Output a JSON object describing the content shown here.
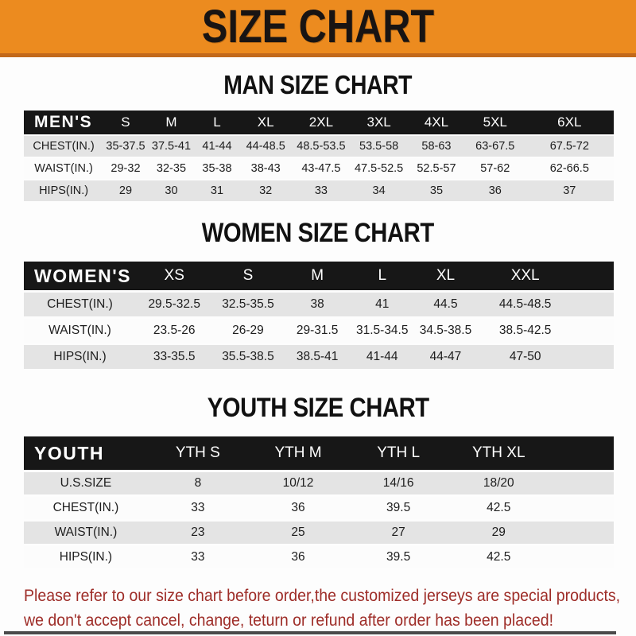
{
  "banner": {
    "title": "SIZE CHART"
  },
  "sections": [
    {
      "id": "men",
      "heading": "MAN SIZE CHART",
      "corner_label": "MEN'S",
      "columns": [
        "S",
        "M",
        "L",
        "XL",
        "2XL",
        "3XL",
        "4XL",
        "5XL",
        "6XL"
      ],
      "rows": [
        {
          "label": "CHEST(IN.)",
          "values": [
            "35-37.5",
            "37.5-41",
            "41-44",
            "44-48.5",
            "48.5-53.5",
            "53.5-58",
            "58-63",
            "63-67.5",
            "67.5-72"
          ]
        },
        {
          "label": "WAIST(IN.)",
          "values": [
            "29-32",
            "32-35",
            "35-38",
            "38-43",
            "43-47.5",
            "47.5-52.5",
            "52.5-57",
            "57-62",
            "62-66.5"
          ]
        },
        {
          "label": "HIPS(IN.)",
          "values": [
            "29",
            "30",
            "31",
            "32",
            "33",
            "34",
            "35",
            "36",
            "37"
          ]
        }
      ]
    },
    {
      "id": "women",
      "heading": "WOMEN SIZE CHART",
      "corner_label": "WOMEN'S",
      "columns": [
        "XS",
        "S",
        "M",
        "L",
        "XL",
        "XXL"
      ],
      "rows": [
        {
          "label": "CHEST(IN.)",
          "values": [
            "29.5-32.5",
            "32.5-35.5",
            "38",
            "41",
            "44.5",
            "44.5-48.5"
          ]
        },
        {
          "label": "WAIST(IN.)",
          "values": [
            "23.5-26",
            "26-29",
            "29-31.5",
            "31.5-34.5",
            "34.5-38.5",
            "38.5-42.5"
          ]
        },
        {
          "label": "HIPS(IN.)",
          "values": [
            "33-35.5",
            "35.5-38.5",
            "38.5-41",
            "41-44",
            "44-47",
            "47-50"
          ]
        }
      ]
    },
    {
      "id": "youth",
      "heading": "YOUTH SIZE CHART",
      "corner_label": "YOUTH",
      "columns": [
        "YTH S",
        "YTH M",
        "YTH L",
        "YTH XL"
      ],
      "rows": [
        {
          "label": "U.S.SIZE",
          "values": [
            "8",
            "10/12",
            "14/16",
            "18/20"
          ]
        },
        {
          "label": "CHEST(IN.)",
          "values": [
            "33",
            "36",
            "39.5",
            "42.5"
          ]
        },
        {
          "label": "WAIST(IN.)",
          "values": [
            "23",
            "25",
            "27",
            "29"
          ]
        },
        {
          "label": "HIPS(IN.)",
          "values": [
            "33",
            "36",
            "39.5",
            "42.5"
          ]
        }
      ]
    }
  ],
  "footer": {
    "line1": "Please refer to our size chart before order,the customized jerseys are special products,",
    "line2": "we don't accept cancel, change, teturn or refund after order has been placed!"
  },
  "colors": {
    "banner_orange": "#EC8B1F",
    "banner_strip": "#C2691B",
    "bar_black": "#171717",
    "row_gray": "#E4E4E4",
    "footer_red": "#9E2D28"
  }
}
